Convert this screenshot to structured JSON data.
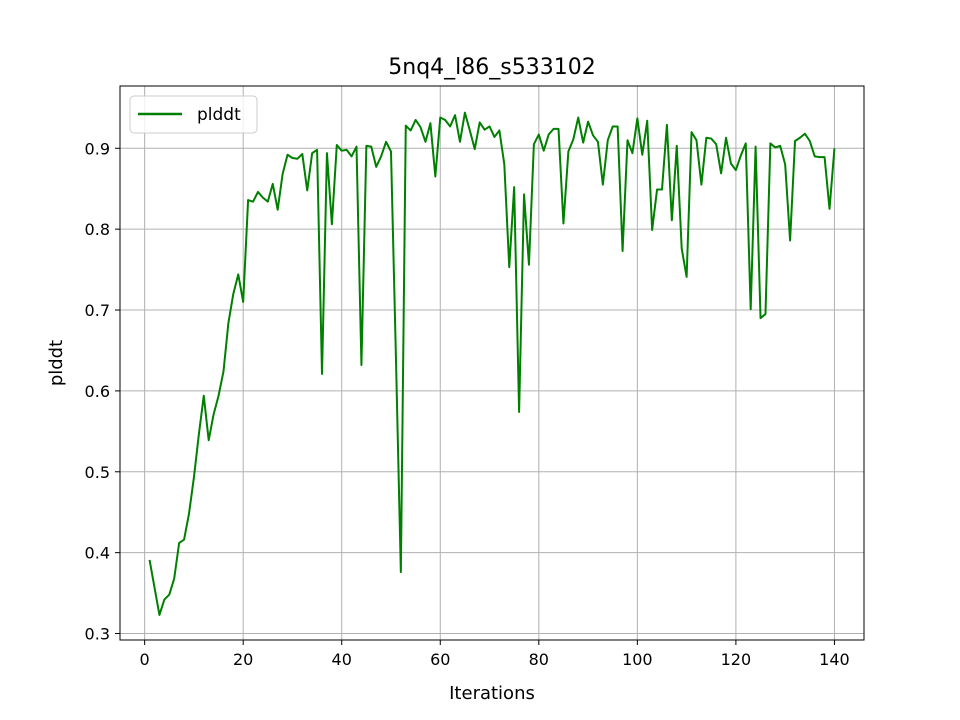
{
  "chart_data": {
    "type": "line",
    "title": "5nq4_l86_s533102",
    "xlabel": "Iterations",
    "ylabel": "plddt",
    "xlim": [
      -5,
      146
    ],
    "ylim": [
      0.292,
      0.977
    ],
    "xticks": [
      0,
      20,
      40,
      60,
      80,
      100,
      120,
      140
    ],
    "yticks": [
      0.3,
      0.4,
      0.5,
      0.6,
      0.7,
      0.8,
      0.9
    ],
    "ytick_labels": [
      "0.3",
      "0.4",
      "0.5",
      "0.6",
      "0.7",
      "0.8",
      "0.9"
    ],
    "grid": true,
    "legend_position": "top-left",
    "series": [
      {
        "name": "plddt",
        "color": "#008000",
        "x": [
          1,
          2,
          3,
          4,
          5,
          6,
          7,
          8,
          9,
          10,
          11,
          12,
          13,
          14,
          15,
          16,
          17,
          18,
          19,
          20,
          21,
          22,
          23,
          24,
          25,
          26,
          27,
          28,
          29,
          30,
          31,
          32,
          33,
          34,
          35,
          36,
          37,
          38,
          39,
          40,
          41,
          42,
          43,
          44,
          45,
          46,
          47,
          48,
          49,
          50,
          51,
          52,
          53,
          54,
          55,
          56,
          57,
          58,
          59,
          60,
          61,
          62,
          63,
          64,
          65,
          66,
          67,
          68,
          69,
          70,
          71,
          72,
          73,
          74,
          75,
          76,
          77,
          78,
          79,
          80,
          81,
          82,
          83,
          84,
          85,
          86,
          87,
          88,
          89,
          90,
          91,
          92,
          93,
          94,
          95,
          96,
          97,
          98,
          99,
          100,
          101,
          102,
          103,
          104,
          105,
          106,
          107,
          108,
          109,
          110,
          111,
          112,
          113,
          114,
          115,
          116,
          117,
          118,
          119,
          120,
          121,
          122,
          123,
          124,
          125,
          126,
          127,
          128,
          129,
          130,
          131,
          132,
          133,
          134,
          135,
          136,
          137,
          138,
          139,
          140
        ],
        "y": [
          0.391,
          0.357,
          0.323,
          0.342,
          0.348,
          0.368,
          0.412,
          0.416,
          0.448,
          0.493,
          0.546,
          0.594,
          0.539,
          0.571,
          0.594,
          0.624,
          0.684,
          0.72,
          0.744,
          0.71,
          0.836,
          0.834,
          0.846,
          0.839,
          0.834,
          0.856,
          0.824,
          0.868,
          0.892,
          0.888,
          0.887,
          0.893,
          0.848,
          0.894,
          0.898,
          0.621,
          0.894,
          0.806,
          0.904,
          0.897,
          0.898,
          0.89,
          0.902,
          0.632,
          0.903,
          0.902,
          0.877,
          0.89,
          0.908,
          0.896,
          0.642,
          0.376,
          0.928,
          0.922,
          0.935,
          0.926,
          0.908,
          0.931,
          0.865,
          0.938,
          0.935,
          0.927,
          0.941,
          0.908,
          0.944,
          0.922,
          0.899,
          0.932,
          0.923,
          0.927,
          0.914,
          0.922,
          0.88,
          0.753,
          0.852,
          0.574,
          0.843,
          0.756,
          0.905,
          0.917,
          0.897,
          0.917,
          0.924,
          0.924,
          0.807,
          0.896,
          0.911,
          0.938,
          0.907,
          0.933,
          0.916,
          0.908,
          0.855,
          0.91,
          0.927,
          0.927,
          0.773,
          0.91,
          0.894,
          0.937,
          0.892,
          0.934,
          0.799,
          0.849,
          0.849,
          0.929,
          0.811,
          0.903,
          0.776,
          0.741,
          0.92,
          0.91,
          0.855,
          0.913,
          0.912,
          0.905,
          0.869,
          0.913,
          0.881,
          0.873,
          0.891,
          0.906,
          0.701,
          0.902,
          0.69,
          0.695,
          0.906,
          0.901,
          0.903,
          0.88,
          0.786,
          0.909,
          0.913,
          0.918,
          0.909,
          0.89,
          0.889,
          0.889,
          0.825,
          0.9
        ]
      }
    ]
  }
}
